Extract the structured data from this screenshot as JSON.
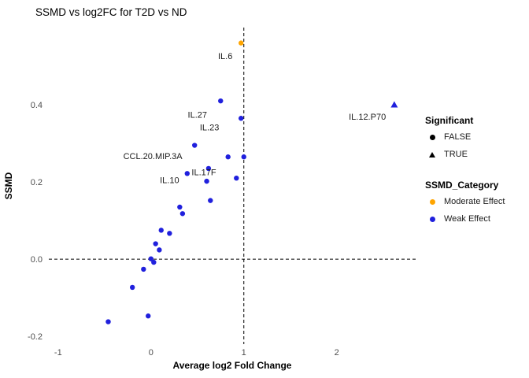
{
  "title": "SSMD vs log2FC for T2D vs ND",
  "chart_data": {
    "type": "scatter",
    "title": "SSMD vs log2FC for T2D vs ND",
    "xlabel": "Average log2 Fold Change",
    "ylabel": "SSMD",
    "xlim": [
      -1.1,
      2.85
    ],
    "ylim": [
      -0.22,
      0.6
    ],
    "grid": false,
    "x_ticks": [
      {
        "value": -1,
        "label": "-1"
      },
      {
        "value": 0,
        "label": "0"
      },
      {
        "value": 1,
        "label": "1"
      },
      {
        "value": 2,
        "label": "2"
      }
    ],
    "y_ticks": [
      {
        "value": -0.2,
        "label": "-0.2"
      },
      {
        "value": 0.0,
        "label": "0.0"
      },
      {
        "value": 0.2,
        "label": "0.2"
      },
      {
        "value": 0.4,
        "label": "0.4"
      }
    ],
    "reference_lines": {
      "vline_x": 1,
      "hline_y": 0
    },
    "series": [
      {
        "name": "Weak Effect / FALSE",
        "shape": "circle",
        "color": "#2020dd",
        "points": [
          [
            0.75,
            0.41
          ],
          [
            0.97,
            0.365
          ],
          [
            0.47,
            0.295
          ],
          [
            0.83,
            0.265
          ],
          [
            1.0,
            0.265
          ],
          [
            0.62,
            0.235
          ],
          [
            0.39,
            0.222
          ],
          [
            0.92,
            0.21
          ],
          [
            0.6,
            0.202
          ],
          [
            0.64,
            0.152
          ],
          [
            0.31,
            0.135
          ],
          [
            0.34,
            0.118
          ],
          [
            0.11,
            0.075
          ],
          [
            0.2,
            0.067
          ],
          [
            0.05,
            0.04
          ],
          [
            0.09,
            0.024
          ],
          [
            0.0,
            0.001
          ],
          [
            0.03,
            -0.008
          ],
          [
            -0.08,
            -0.026
          ],
          [
            -0.2,
            -0.073
          ],
          [
            -0.03,
            -0.147
          ],
          [
            -0.46,
            -0.162
          ]
        ]
      },
      {
        "name": "Moderate Effect / FALSE",
        "shape": "circle",
        "color": "#FFA500",
        "points": [
          [
            0.97,
            0.56
          ]
        ]
      },
      {
        "name": "Weak Effect / TRUE",
        "shape": "triangle",
        "color": "#2020dd",
        "points": [
          [
            2.62,
            0.4
          ]
        ]
      }
    ],
    "point_labels": [
      {
        "text": "IL.6",
        "x": 0.8,
        "y": 0.527
      },
      {
        "text": "IL.27",
        "x": 0.5,
        "y": 0.375
      },
      {
        "text": "IL.23",
        "x": 0.63,
        "y": 0.342
      },
      {
        "text": "CCL.20.MIP.3A",
        "x": 0.02,
        "y": 0.268
      },
      {
        "text": "IL.17F",
        "x": 0.57,
        "y": 0.226
      },
      {
        "text": "IL.10",
        "x": 0.2,
        "y": 0.205
      },
      {
        "text": "IL.12.P70",
        "x": 2.33,
        "y": 0.37
      }
    ],
    "legend_position": "right"
  },
  "legend": {
    "significant": {
      "title": "Significant",
      "items": [
        {
          "label": "FALSE",
          "shape": "circle"
        },
        {
          "label": "TRUE",
          "shape": "triangle"
        }
      ]
    },
    "category": {
      "title": "SSMD_Category",
      "items": [
        {
          "label": "Moderate Effect",
          "color": "#FFA500"
        },
        {
          "label": "Weak Effect",
          "color": "#2020dd"
        }
      ]
    }
  }
}
